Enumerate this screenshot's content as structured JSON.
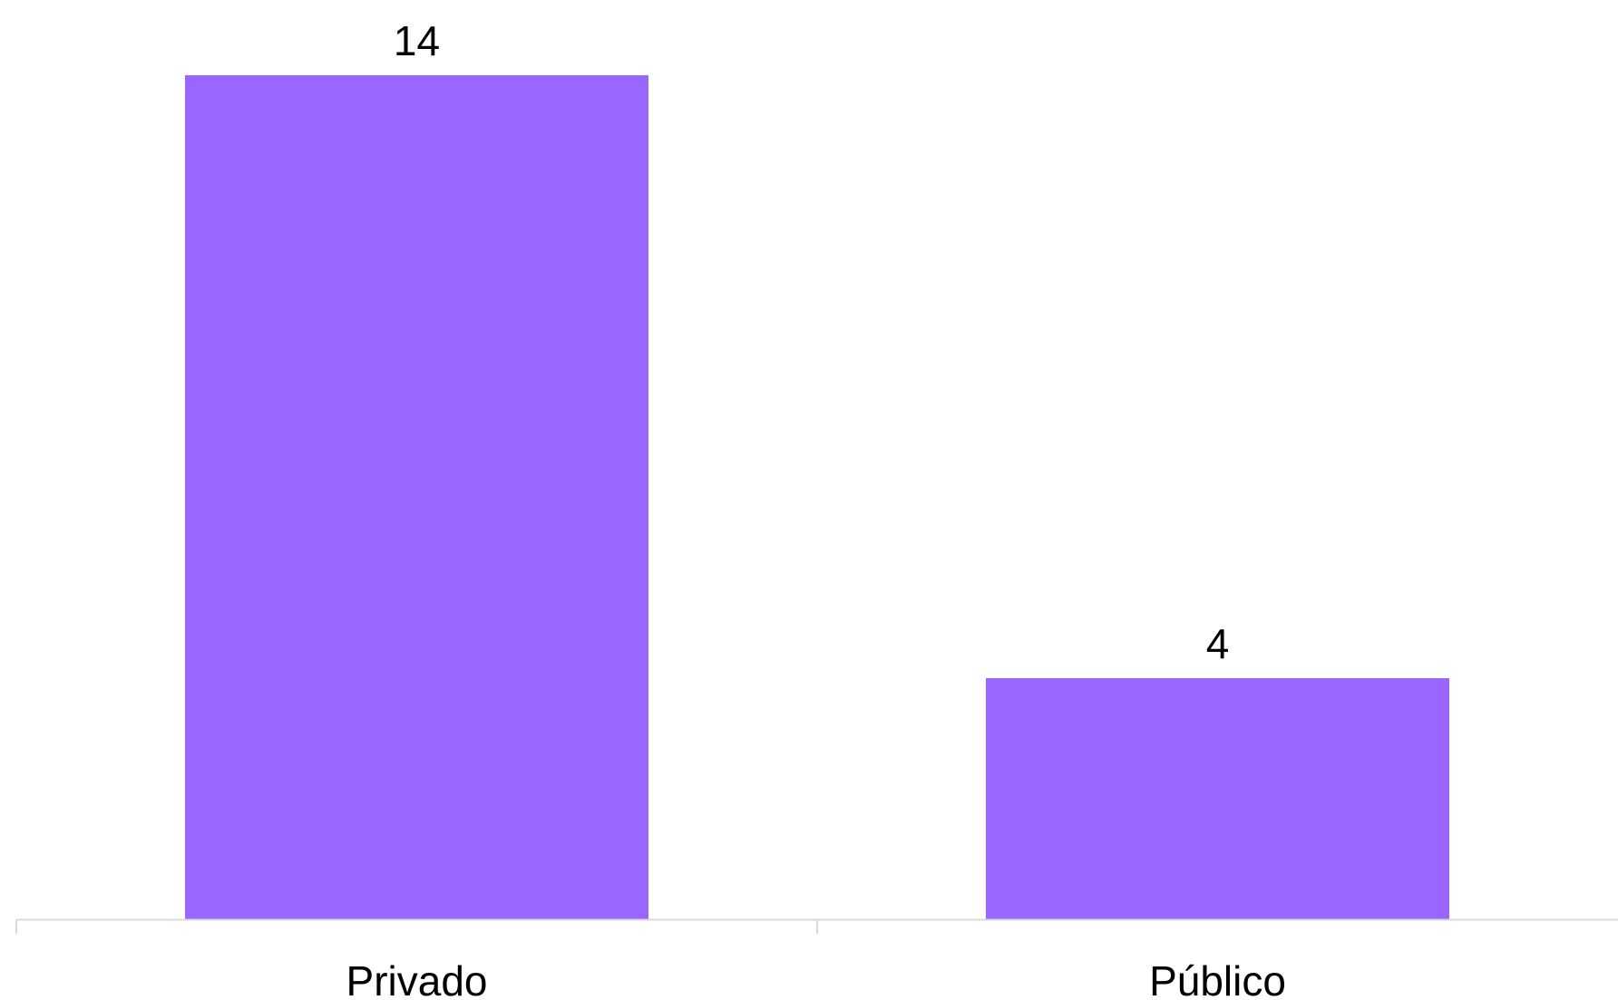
{
  "chart_data": {
    "type": "bar",
    "categories": [
      "Privado",
      "Público"
    ],
    "values": [
      14,
      4
    ],
    "title": "",
    "xlabel": "",
    "ylabel": "",
    "ylim": [
      0,
      15
    ],
    "bar_color": "#9966ff",
    "axis_color": "#d9d9d9",
    "grid": false,
    "data_labels": [
      "14",
      "4"
    ]
  }
}
